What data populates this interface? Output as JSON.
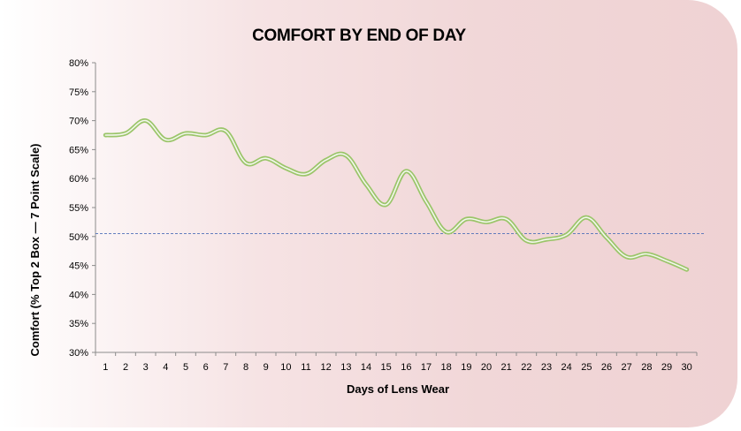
{
  "chart_data": {
    "type": "line",
    "title": "COMFORT BY END OF DAY",
    "xlabel": "Days of Lens Wear",
    "ylabel": "Comfort (% Top 2 Box — 7 Point Scale)",
    "x": [
      1,
      2,
      3,
      4,
      5,
      6,
      7,
      8,
      9,
      10,
      11,
      12,
      13,
      14,
      15,
      16,
      17,
      18,
      19,
      20,
      21,
      22,
      23,
      24,
      25,
      26,
      27,
      28,
      29,
      30
    ],
    "ylim": [
      30,
      80
    ],
    "yticks": [
      30,
      35,
      40,
      45,
      50,
      55,
      60,
      65,
      70,
      75,
      80
    ],
    "ytick_labels": [
      "30%",
      "35%",
      "40%",
      "45%",
      "50%",
      "55%",
      "60%",
      "65%",
      "70%",
      "75%",
      "80%"
    ],
    "series": [
      {
        "color": "#9bc56a",
        "values": [
          67.5,
          67.8,
          70.0,
          66.7,
          67.8,
          67.5,
          68.2,
          62.7,
          63.5,
          61.8,
          60.8,
          63.2,
          64.0,
          59.0,
          55.5,
          61.3,
          56.0,
          50.8,
          53.0,
          52.5,
          53.0,
          49.3,
          49.5,
          50.3,
          53.3,
          49.8,
          46.5,
          47.0,
          45.8,
          44.3
        ]
      }
    ],
    "reference_line": {
      "y": 50.5,
      "color": "#4f6fb8",
      "style": "dashed"
    },
    "grid": false,
    "legend": "none"
  }
}
